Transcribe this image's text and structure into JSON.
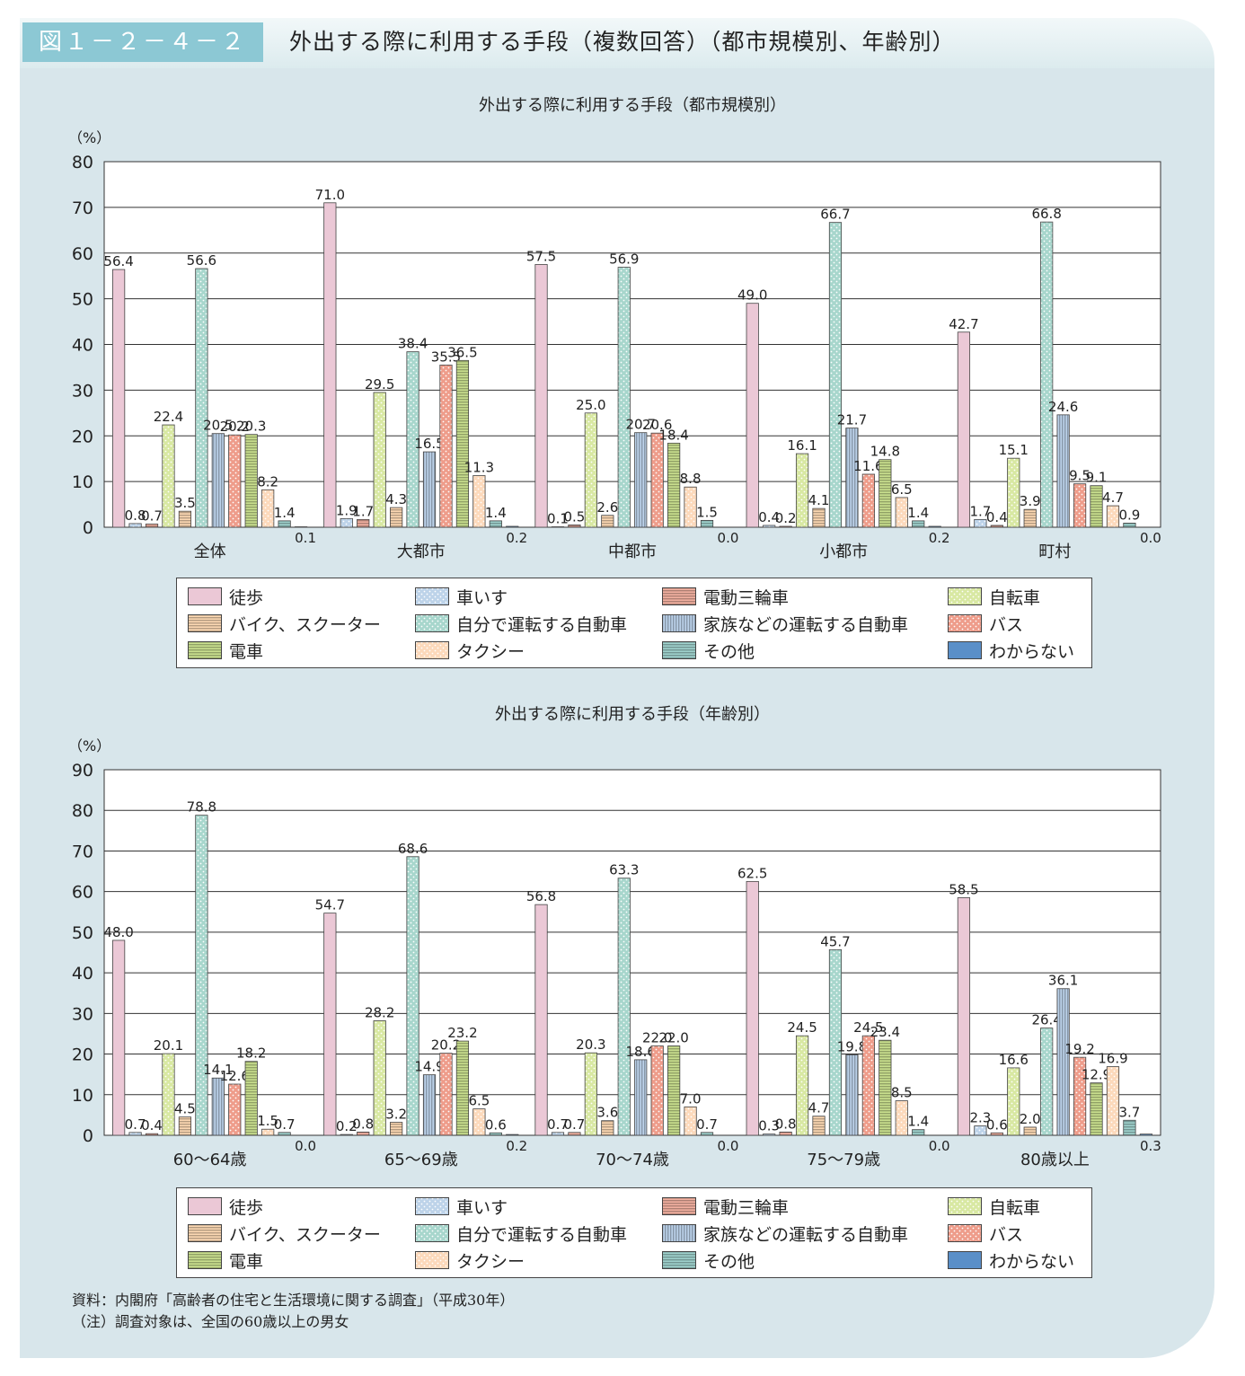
{
  "header": {
    "figure_label": "図１－２－４－２",
    "title": "外出する際に利用する手段（複数回答）（都市規模別、年齢別）"
  },
  "legend": [
    {
      "label": "徒歩",
      "pattern": "plain",
      "color": "#ebc8d6"
    },
    {
      "label": "車いす",
      "pattern": "dots",
      "color": "#bdd3e9"
    },
    {
      "label": "電動三輪車",
      "pattern": "hlines",
      "color": "#f2b0a0"
    },
    {
      "label": "自転車",
      "pattern": "dots",
      "color": "#d8e8a2"
    },
    {
      "label": "バイク、スクーター",
      "pattern": "hlines",
      "color": "#fbd7b2"
    },
    {
      "label": "自分で運転する自動車",
      "pattern": "dots",
      "color": "#a7d6cc"
    },
    {
      "label": "家族などの運転する自動車",
      "pattern": "vlines",
      "color": "#bcd2ea"
    },
    {
      "label": "バス",
      "pattern": "dots",
      "color": "#ee9c8a"
    },
    {
      "label": "電車",
      "pattern": "hlines",
      "color": "#c9df8e"
    },
    {
      "label": "タクシー",
      "pattern": "dots",
      "color": "#fcd9bb"
    },
    {
      "label": "その他",
      "pattern": "hlines",
      "color": "#9ed1cc"
    },
    {
      "label": "わからない",
      "pattern": "plain",
      "color": "#5a8fc8"
    }
  ],
  "source": {
    "line1": "資料：内閣府「高齢者の住宅と生活環境に関する調査」（平成30年）",
    "line2": "（注）調査対象は、全国の60歳以上の男女"
  },
  "chart_data": [
    {
      "type": "bar",
      "title": "外出する際に利用する手段（都市規模別）",
      "unit_label": "（%）",
      "ylim": [
        0,
        80
      ],
      "yticks": [
        0,
        10,
        20,
        30,
        40,
        50,
        60,
        70,
        80
      ],
      "grid": true,
      "categories": [
        "全体",
        "大都市",
        "中都市",
        "小都市",
        "町村"
      ],
      "series": [
        {
          "values": [
            56.4,
            71.0,
            57.5,
            49.0,
            42.7
          ]
        },
        {
          "values": [
            0.8,
            1.9,
            0.1,
            0.4,
            1.7
          ]
        },
        {
          "values": [
            0.7,
            1.7,
            0.5,
            0.2,
            0.4
          ]
        },
        {
          "values": [
            22.4,
            29.5,
            25.0,
            16.1,
            15.1
          ]
        },
        {
          "values": [
            3.5,
            4.3,
            2.6,
            4.1,
            3.9
          ]
        },
        {
          "values": [
            56.6,
            38.4,
            56.9,
            66.7,
            66.8
          ]
        },
        {
          "values": [
            20.5,
            16.5,
            20.7,
            21.7,
            24.6
          ]
        },
        {
          "values": [
            20.2,
            35.5,
            20.6,
            11.6,
            9.5
          ]
        },
        {
          "values": [
            20.3,
            36.5,
            18.4,
            14.8,
            9.1
          ]
        },
        {
          "values": [
            8.2,
            11.3,
            8.8,
            6.5,
            4.7
          ]
        },
        {
          "values": [
            1.4,
            1.4,
            1.5,
            1.4,
            0.9
          ]
        },
        {
          "values": [
            0.1,
            0.2,
            0.0,
            0.2,
            0.0
          ]
        }
      ]
    },
    {
      "type": "bar",
      "title": "外出する際に利用する手段（年齢別）",
      "unit_label": "（%）",
      "ylim": [
        0,
        90
      ],
      "yticks": [
        0,
        10,
        20,
        30,
        40,
        50,
        60,
        70,
        80,
        90
      ],
      "grid": true,
      "categories": [
        "60～64歳",
        "65～69歳",
        "70～74歳",
        "75～79歳",
        "80歳以上"
      ],
      "series": [
        {
          "values": [
            48.0,
            54.7,
            56.8,
            62.5,
            58.5
          ]
        },
        {
          "values": [
            0.7,
            0.2,
            0.7,
            0.3,
            2.3
          ]
        },
        {
          "values": [
            0.4,
            0.8,
            0.7,
            0.8,
            0.6
          ]
        },
        {
          "values": [
            20.1,
            28.2,
            20.3,
            24.5,
            16.6
          ]
        },
        {
          "values": [
            4.5,
            3.2,
            3.6,
            4.7,
            2.0
          ]
        },
        {
          "values": [
            78.8,
            68.6,
            63.3,
            45.7,
            26.4
          ]
        },
        {
          "values": [
            14.1,
            14.9,
            18.6,
            19.8,
            36.1
          ]
        },
        {
          "values": [
            12.6,
            20.2,
            22.0,
            24.5,
            19.2
          ]
        },
        {
          "values": [
            18.2,
            23.2,
            22.0,
            23.4,
            12.9
          ]
        },
        {
          "values": [
            1.5,
            6.5,
            7.0,
            8.5,
            16.9
          ]
        },
        {
          "values": [
            0.7,
            0.6,
            0.7,
            1.4,
            3.7
          ]
        },
        {
          "values": [
            0.0,
            0.2,
            0.0,
            0.0,
            0.3
          ]
        }
      ]
    }
  ]
}
